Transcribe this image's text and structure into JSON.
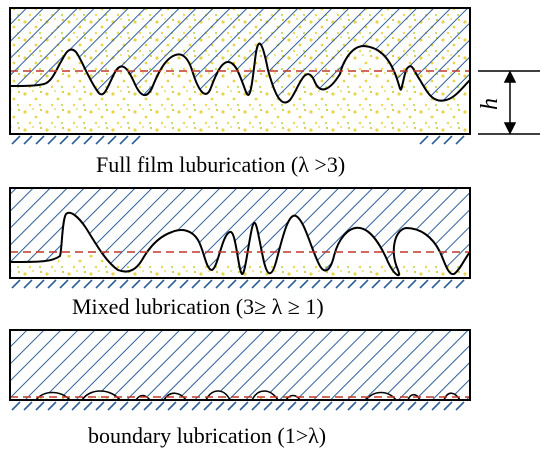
{
  "panels": [
    {
      "id": "full-film",
      "caption": "Full film luburication (λ >3)"
    },
    {
      "id": "mixed",
      "caption": "Mixed lubrication (3≥ λ ≥ 1)"
    },
    {
      "id": "boundary",
      "caption": "boundary lubrication (1>λ)"
    }
  ],
  "dimension_label": "h",
  "colors": {
    "hatch": "#2e5f9a",
    "surface_line": "#000000",
    "mean_line": "#c0392b",
    "particles": "#e8d44a"
  }
}
